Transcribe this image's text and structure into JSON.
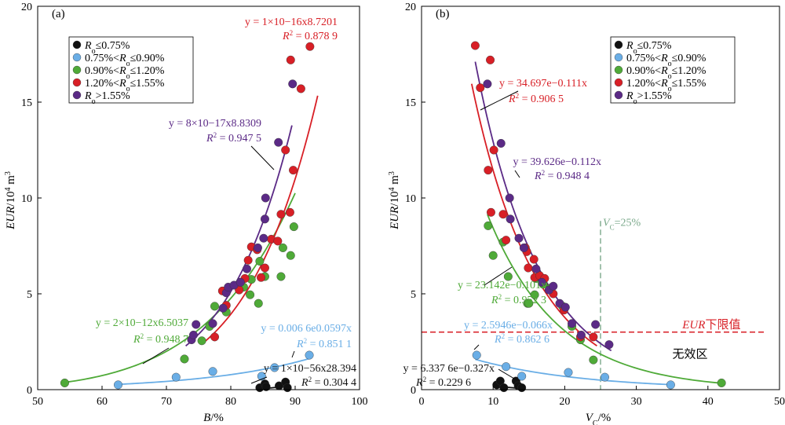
{
  "colors": {
    "black": "#111111",
    "blue": "#6aaee6",
    "green": "#4faa38",
    "red": "#d81f26",
    "purple": "#5b2a86",
    "threshold_red": "#d81f26",
    "vline_green": "#7aa88a"
  },
  "legend": {
    "items": [
      {
        "key": "black",
        "label": "Ro≤0.75%"
      },
      {
        "key": "blue",
        "label": "0.75%<Ro≤0.90%"
      },
      {
        "key": "green",
        "label": "0.90%<Ro≤1.20%"
      },
      {
        "key": "red",
        "label": "1.20%<Ro≤1.55%"
      },
      {
        "key": "purple",
        "label": "Ro>1.55%"
      }
    ]
  },
  "chart_data": [
    {
      "type": "scatter",
      "panel_label": "(a)",
      "xlabel": "B/%",
      "ylabel": "EUR/10⁴ m³",
      "xlim": [
        50,
        100
      ],
      "ylim": [
        0,
        20
      ],
      "xticks": [
        50,
        60,
        70,
        80,
        90,
        100
      ],
      "yticks": [
        0,
        5,
        10,
        15,
        20
      ],
      "series": [
        {
          "key": "black",
          "points": [
            [
              84.5,
              0.1
            ],
            [
              85.3,
              0.3
            ],
            [
              85.5,
              0.15
            ],
            [
              87.5,
              0.2
            ],
            [
              88.5,
              0.4
            ],
            [
              88.8,
              0.1
            ]
          ]
        },
        {
          "key": "blue",
          "points": [
            [
              62.5,
              0.25
            ],
            [
              71.5,
              0.65
            ],
            [
              77.2,
              0.95
            ],
            [
              84.8,
              0.7
            ],
            [
              86.8,
              1.15
            ],
            [
              92.2,
              1.8
            ]
          ]
        },
        {
          "key": "green",
          "points": [
            [
              54.2,
              0.35
            ],
            [
              72.8,
              1.6
            ],
            [
              75.5,
              2.55
            ],
            [
              76.7,
              3.3
            ],
            [
              77.5,
              4.35
            ],
            [
              79.3,
              4.05
            ],
            [
              81.5,
              5.6
            ],
            [
              82.0,
              5.35
            ],
            [
              83.0,
              4.95
            ],
            [
              83.2,
              5.75
            ],
            [
              84.3,
              4.5
            ],
            [
              84.5,
              6.7
            ],
            [
              85.3,
              5.9
            ],
            [
              87.8,
              5.9
            ],
            [
              88.1,
              7.4
            ],
            [
              89.3,
              7.0
            ],
            [
              89.8,
              8.5
            ]
          ]
        },
        {
          "key": "red",
          "points": [
            [
              77.5,
              2.75
            ],
            [
              78.7,
              5.15
            ],
            [
              79.3,
              4.4
            ],
            [
              81.3,
              5.2
            ],
            [
              82.2,
              5.8
            ],
            [
              82.7,
              6.75
            ],
            [
              83.2,
              7.45
            ],
            [
              84.1,
              7.3
            ],
            [
              84.7,
              5.85
            ],
            [
              85.3,
              6.35
            ],
            [
              86.3,
              7.85
            ],
            [
              87.3,
              7.75
            ],
            [
              87.8,
              9.15
            ],
            [
              88.5,
              12.5
            ],
            [
              89.2,
              9.25
            ],
            [
              89.3,
              17.2
            ],
            [
              89.7,
              11.45
            ],
            [
              90.9,
              15.7
            ],
            [
              92.3,
              17.9
            ]
          ]
        },
        {
          "key": "purple",
          "points": [
            [
              73.9,
              2.6
            ],
            [
              74.2,
              2.85
            ],
            [
              74.6,
              3.4
            ],
            [
              77.2,
              3.45
            ],
            [
              78.8,
              4.25
            ],
            [
              79.3,
              5.05
            ],
            [
              79.6,
              5.35
            ],
            [
              80.5,
              5.45
            ],
            [
              81.5,
              5.6
            ],
            [
              82.5,
              6.3
            ],
            [
              84.2,
              7.4
            ],
            [
              85.1,
              7.9
            ],
            [
              85.3,
              8.9
            ],
            [
              85.4,
              10.0
            ],
            [
              87.4,
              12.9
            ],
            [
              89.6,
              15.95
            ]
          ]
        }
      ],
      "fits": [
        {
          "key": "black",
          "equation": "y = 1×10⁻⁵⁶x²⁸·³⁹⁴",
          "r2": "R² = 0.304 4",
          "a": 1e-56,
          "b": 28.394,
          "model": "power",
          "range": [
            84.5,
            89.0
          ]
        },
        {
          "key": "blue",
          "equation": "y = 0.006 6e⁰·⁰⁵⁹⁷ˣ",
          "r2": "R² = 0.851 1",
          "a": 0.0066,
          "b": 0.0597,
          "model": "exp",
          "range": [
            62.5,
            92.5
          ]
        },
        {
          "key": "green",
          "equation": "y = 2×10⁻¹²x⁶·⁵⁰³⁷",
          "r2": "R² = 0.948 7",
          "a": 2e-12,
          "b": 6.5037,
          "model": "power",
          "range": [
            54.0,
            90.0
          ]
        },
        {
          "key": "red",
          "equation": "y = 1×10⁻¹⁶x⁸·⁷²⁰¹",
          "r2": "R² = 0.878 9",
          "a": 1e-16,
          "b": 8.7201,
          "model": "power",
          "range": [
            75.5,
            93.5
          ]
        },
        {
          "key": "purple",
          "equation": "y = 8×10⁻¹⁷x⁸·⁸³⁰⁹",
          "r2": "R² = 0.947 5",
          "a": 8e-17,
          "b": 8.8309,
          "model": "power",
          "range": [
            73.0,
            89.5
          ]
        }
      ]
    },
    {
      "type": "scatter",
      "panel_label": "(b)",
      "xlabel": "VC/%",
      "ylabel": "EUR/10⁴ m³",
      "xlim": [
        0,
        50
      ],
      "ylim": [
        0,
        20
      ],
      "xticks": [
        0,
        10,
        20,
        30,
        40,
        50
      ],
      "yticks": [
        0,
        5,
        10,
        15,
        20
      ],
      "series": [
        {
          "key": "black",
          "points": [
            [
              10.5,
              0.25
            ],
            [
              11.0,
              0.45
            ],
            [
              11.5,
              0.1
            ],
            [
              13.2,
              0.45
            ],
            [
              13.5,
              0.2
            ],
            [
              14.0,
              0.1
            ]
          ]
        },
        {
          "key": "blue",
          "points": [
            [
              7.7,
              1.8
            ],
            [
              11.8,
              1.2
            ],
            [
              14.0,
              0.7
            ],
            [
              20.5,
              0.9
            ],
            [
              25.6,
              0.65
            ],
            [
              34.8,
              0.25
            ]
          ]
        },
        {
          "key": "green",
          "points": [
            [
              9.3,
              8.55
            ],
            [
              10.0,
              7.0
            ],
            [
              11.4,
              7.7
            ],
            [
              12.1,
              5.9
            ],
            [
              14.8,
              4.5
            ],
            [
              15.0,
              4.5
            ],
            [
              15.8,
              4.95
            ],
            [
              16.0,
              5.8
            ],
            [
              17.0,
              5.5
            ],
            [
              18.0,
              5.3
            ],
            [
              19.7,
              4.35
            ],
            [
              21.0,
              3.3
            ],
            [
              22.2,
              2.6
            ],
            [
              24.0,
              1.55
            ],
            [
              41.9,
              0.35
            ]
          ]
        },
        {
          "key": "red",
          "points": [
            [
              7.5,
              17.95
            ],
            [
              8.2,
              15.75
            ],
            [
              9.3,
              11.45
            ],
            [
              9.6,
              17.2
            ],
            [
              9.7,
              9.25
            ],
            [
              10.1,
              12.5
            ],
            [
              11.4,
              9.15
            ],
            [
              11.8,
              7.8
            ],
            [
              14.5,
              7.4
            ],
            [
              14.7,
              7.2
            ],
            [
              14.9,
              6.35
            ],
            [
              15.7,
              6.8
            ],
            [
              15.8,
              5.85
            ],
            [
              16.5,
              5.95
            ],
            [
              17.2,
              5.8
            ],
            [
              18.4,
              5.0
            ],
            [
              19.9,
              4.15
            ],
            [
              22.2,
              2.75
            ],
            [
              24.0,
              2.75
            ]
          ]
        },
        {
          "key": "purple",
          "points": [
            [
              9.2,
              15.95
            ],
            [
              11.1,
              12.85
            ],
            [
              12.3,
              10.0
            ],
            [
              12.4,
              8.9
            ],
            [
              13.6,
              7.9
            ],
            [
              14.3,
              7.4
            ],
            [
              16.0,
              6.3
            ],
            [
              16.8,
              5.6
            ],
            [
              17.8,
              5.2
            ],
            [
              18.4,
              5.4
            ],
            [
              19.3,
              4.5
            ],
            [
              20.1,
              4.3
            ],
            [
              21.0,
              3.45
            ],
            [
              22.3,
              2.85
            ],
            [
              24.3,
              3.4
            ],
            [
              26.2,
              2.35
            ]
          ]
        }
      ],
      "fits": [
        {
          "key": "black",
          "equation": "y = 6.337 6e⁻⁰·³²⁷ˣ",
          "r2": "R² = 0.229 6",
          "a": 6.3376,
          "b": -0.327,
          "model": "exp",
          "range": [
            10.4,
            14.1
          ]
        },
        {
          "key": "blue",
          "equation": "y = 2.5946e⁻⁰·⁰⁶⁶ˣ",
          "r2": "R² = 0.862 6",
          "a": 2.5946,
          "b": -0.066,
          "model": "exp",
          "range": [
            7.5,
            35.0
          ]
        },
        {
          "key": "green",
          "equation": "y = 23.142e⁻⁰·¹⁰¹ˣ",
          "r2": "R² = 0.952 3",
          "a": 23.142,
          "b": -0.101,
          "model": "exp",
          "range": [
            9.2,
            42.0
          ]
        },
        {
          "key": "red",
          "equation": "y = 34.697e⁻⁰·¹¹¹ˣ",
          "r2": "R² = 0.906 5",
          "a": 34.697,
          "b": -0.111,
          "model": "exp",
          "range": [
            7.0,
            24.5
          ]
        },
        {
          "key": "purple",
          "equation": "y = 39.626e⁻⁰·¹¹²ˣ",
          "r2": "R² = 0.948 4",
          "a": 39.626,
          "b": -0.112,
          "model": "exp",
          "range": [
            7.5,
            26.5
          ]
        }
      ],
      "threshold": {
        "y": 3.0,
        "label": "EUR下限值"
      },
      "vline": {
        "x": 25,
        "label": "VC=25%"
      },
      "invalid_zone_label": "无效区"
    }
  ]
}
